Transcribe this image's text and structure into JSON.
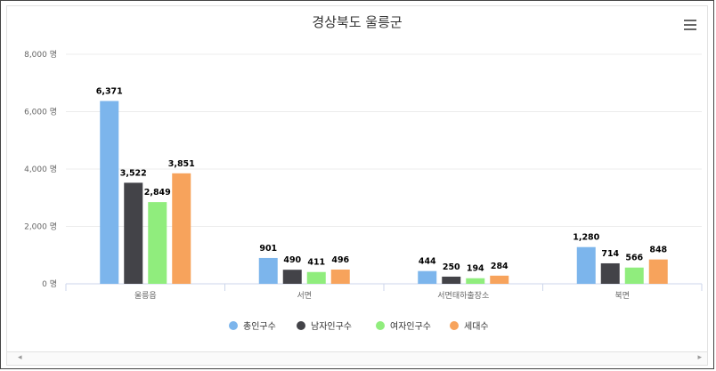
{
  "chart_data": {
    "type": "bar",
    "title": "경상북도 울릉군",
    "categories": [
      "울릉읍",
      "서면",
      "서면태하출장소",
      "북면"
    ],
    "series": [
      {
        "name": "총인구수",
        "color": "#7cb5ec",
        "values": [
          6371,
          901,
          444,
          1280
        ],
        "labels": [
          "6,371",
          "901",
          "444",
          "1,280"
        ]
      },
      {
        "name": "남자인구수",
        "color": "#434348",
        "values": [
          3522,
          490,
          250,
          714
        ],
        "labels": [
          "3,522",
          "490",
          "250",
          "714"
        ]
      },
      {
        "name": "여자인구수",
        "color": "#90ed7d",
        "values": [
          2849,
          411,
          194,
          566
        ],
        "labels": [
          "2,849",
          "411",
          "194",
          "566"
        ]
      },
      {
        "name": "세대수",
        "color": "#f7a35c",
        "values": [
          3851,
          496,
          284,
          848
        ],
        "labels": [
          "3,851",
          "496",
          "284",
          "848"
        ]
      }
    ],
    "ylim": [
      0,
      8000
    ],
    "yticks": [
      0,
      2000,
      4000,
      6000,
      8000
    ],
    "ytick_labels": [
      "0 명",
      "2,000 명",
      "4,000 명",
      "6,000 명",
      "8,000 명"
    ],
    "grid": true,
    "legend": "bottom-center"
  },
  "ui": {
    "menu_icon": "hamburger-menu-icon",
    "scroll_left": "◂",
    "scroll_right": "▸"
  }
}
